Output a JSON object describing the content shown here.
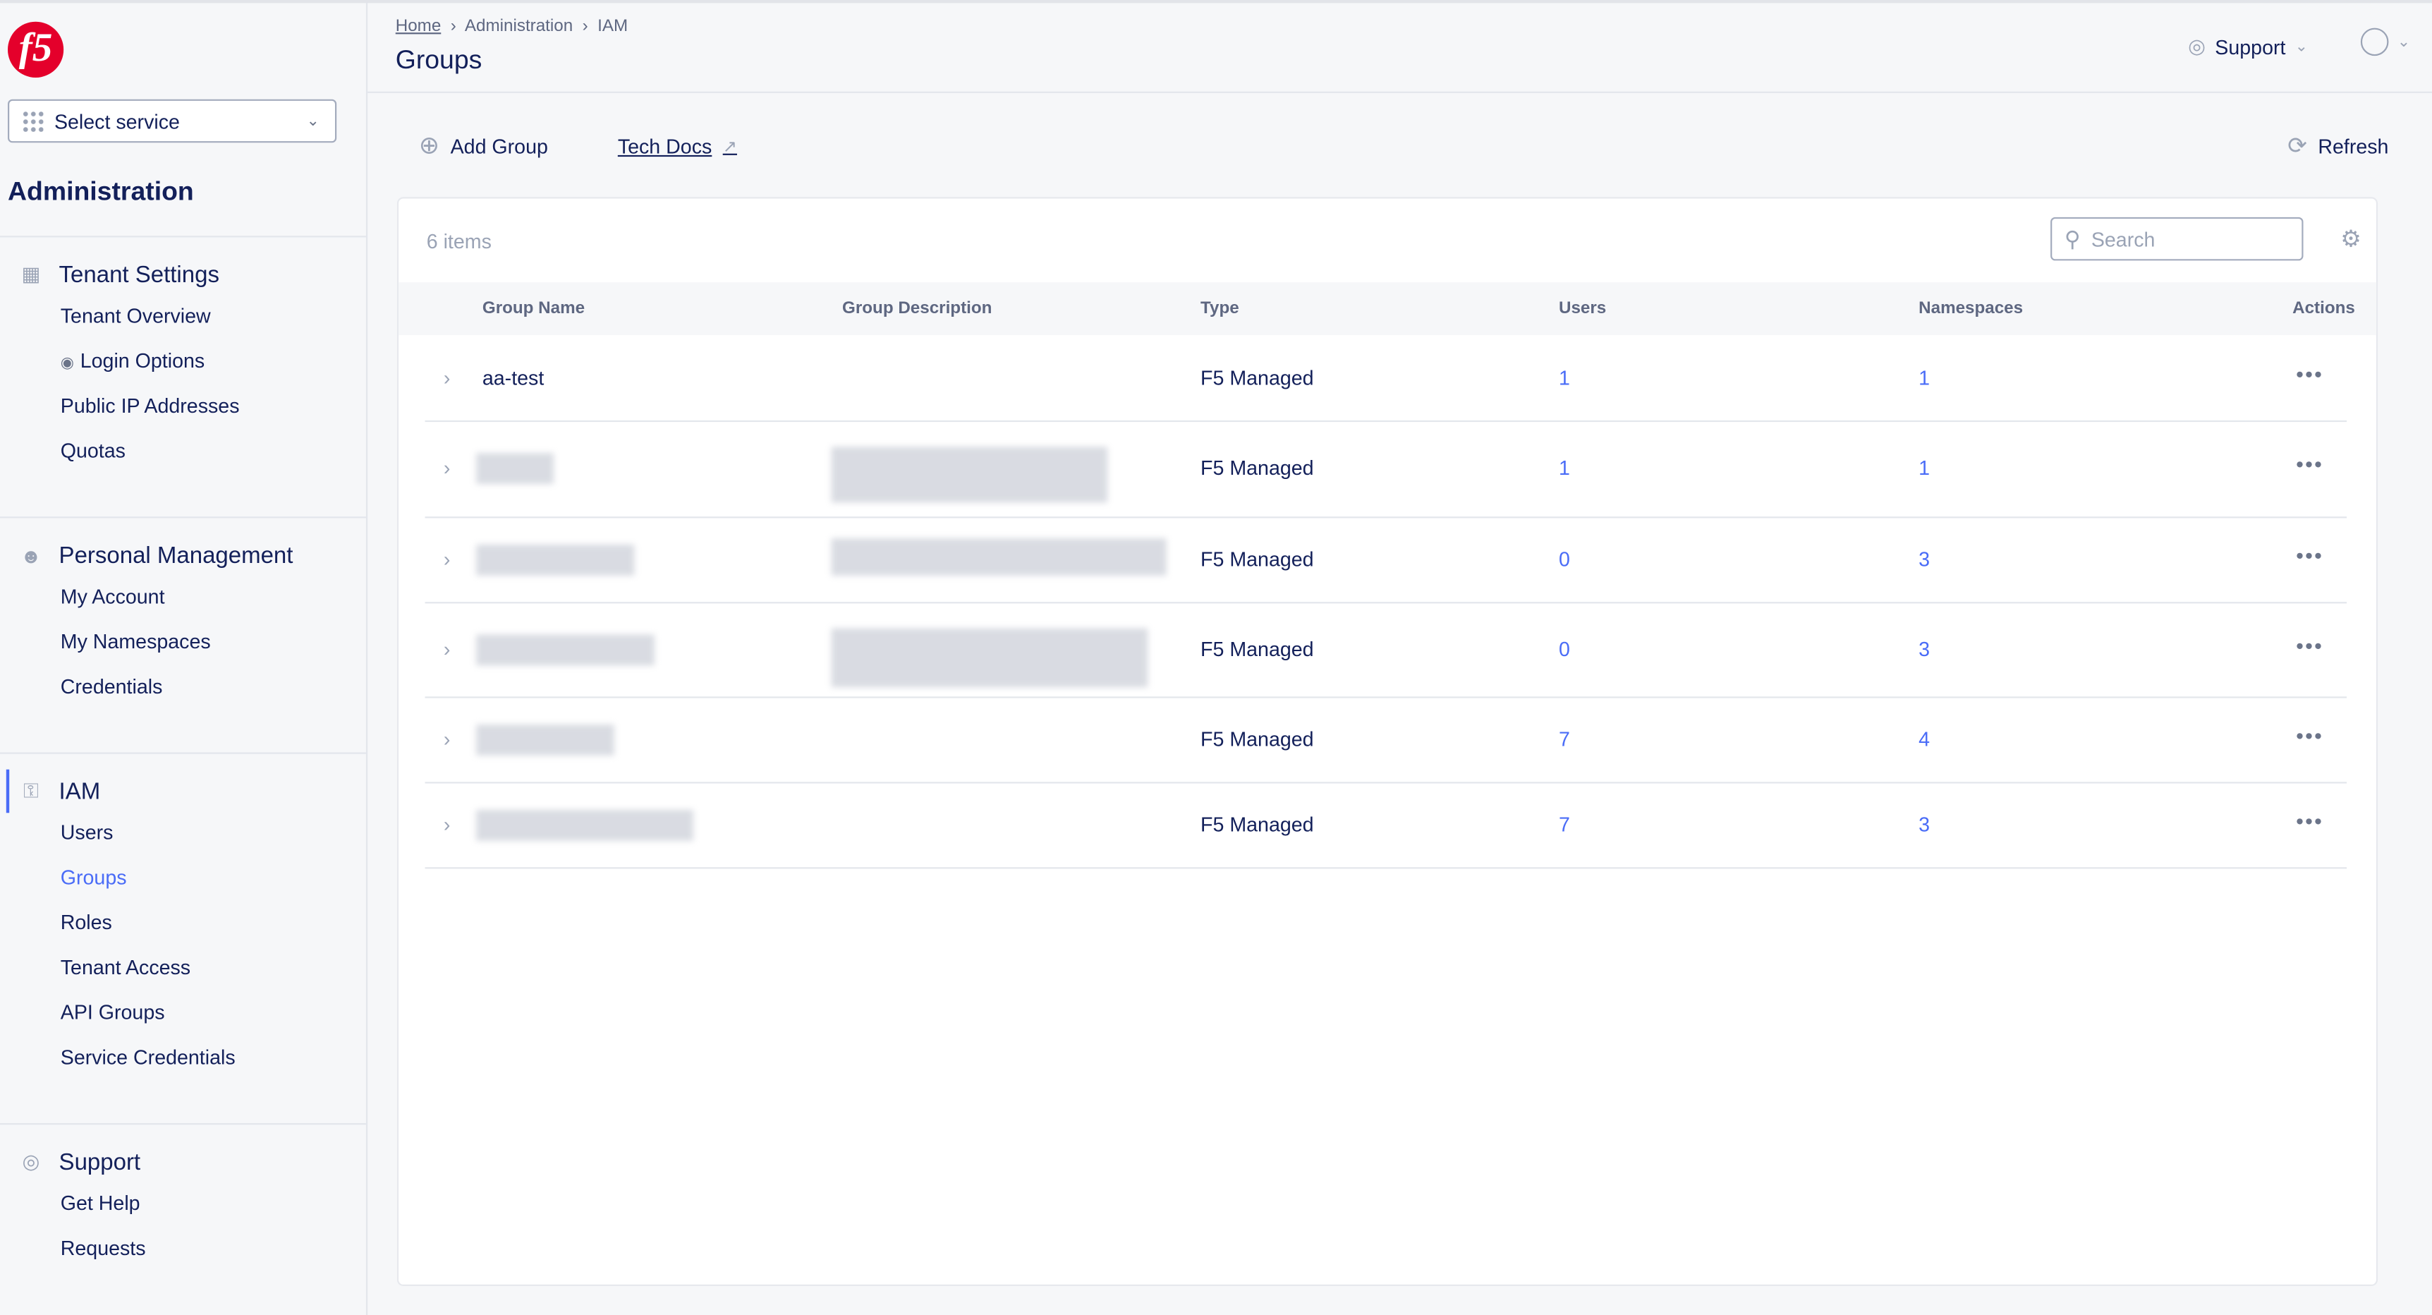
{
  "logo": "f5",
  "sidebar": {
    "service_select": "Select service",
    "heading": "Administration",
    "sections": [
      {
        "title": "Tenant Settings",
        "icon": "building-icon",
        "items": [
          "Tenant Overview",
          "Login Options",
          "Public IP Addresses",
          "Quotas"
        ]
      },
      {
        "title": "Personal Management",
        "icon": "user-gear-icon",
        "items": [
          "My Account",
          "My Namespaces",
          "Credentials"
        ]
      },
      {
        "title": "IAM",
        "icon": "key-icon",
        "items": [
          "Users",
          "Groups",
          "Roles",
          "Tenant Access",
          "API Groups",
          "Service Credentials"
        ]
      },
      {
        "title": "Support",
        "icon": "lifebuoy-icon",
        "items": [
          "Get Help",
          "Requests"
        ]
      }
    ],
    "active_item": "Groups"
  },
  "header": {
    "breadcrumb": [
      "Home",
      "Administration",
      "IAM"
    ],
    "title": "Groups",
    "support": "Support"
  },
  "toolbar": {
    "add": "Add Group",
    "docs": "Tech Docs",
    "refresh": "Refresh"
  },
  "table": {
    "count": "6 items",
    "search_placeholder": "Search",
    "columns": [
      "Group Name",
      "Group Description",
      "Type",
      "Users",
      "Namespaces",
      "Actions"
    ],
    "rows": [
      {
        "name": "aa-test",
        "type": "F5 Managed",
        "users": "1",
        "namespaces": "1"
      },
      {
        "name": "",
        "type": "F5 Managed",
        "users": "1",
        "namespaces": "1"
      },
      {
        "name": "",
        "type": "F5 Managed",
        "users": "0",
        "namespaces": "3"
      },
      {
        "name": "",
        "type": "F5 Managed",
        "users": "0",
        "namespaces": "3"
      },
      {
        "name": "",
        "type": "F5 Managed",
        "users": "7",
        "namespaces": "4"
      },
      {
        "name": "",
        "type": "F5 Managed",
        "users": "7",
        "namespaces": "3"
      }
    ]
  },
  "colors": {
    "accent": "#4a6cf7",
    "text": "#13205a",
    "brand": "#e4002b"
  }
}
